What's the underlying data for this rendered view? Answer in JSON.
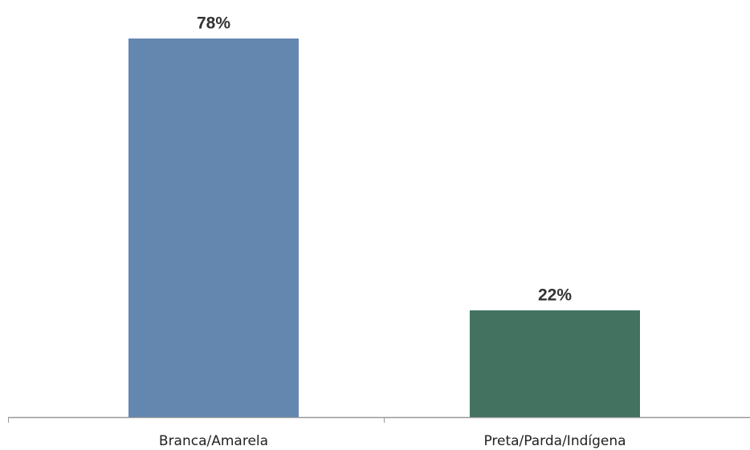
{
  "chart_data": {
    "type": "bar",
    "categories": [
      "Branca/Amarela",
      "Preta/Parda/Indígena"
    ],
    "values": [
      78,
      22
    ],
    "value_labels": [
      "78%",
      "22%"
    ],
    "colors": [
      "#6487b0",
      "#437360"
    ]
  }
}
